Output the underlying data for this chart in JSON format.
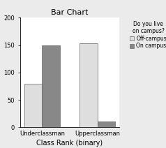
{
  "title": "Bar Chart",
  "xlabel": "Class Rank (binary)",
  "categories": [
    "Underclassman",
    "Upperclassman"
  ],
  "series": [
    {
      "label": "Off-campus",
      "values": [
        80,
        153
      ],
      "color": "#dedede"
    },
    {
      "label": "On campus",
      "values": [
        150,
        10
      ],
      "color": "#888888"
    }
  ],
  "legend_title": "Do you live\non campus?",
  "ylim": [
    0,
    200
  ],
  "yticks": [
    0,
    50,
    100,
    150,
    200
  ],
  "bar_width": 0.32,
  "background_color": "#ebebeb",
  "plot_bg_color": "#ffffff",
  "title_fontsize": 8,
  "axis_label_fontsize": 7,
  "tick_fontsize": 6,
  "legend_fontsize": 5.5,
  "legend_title_fontsize": 5.5
}
